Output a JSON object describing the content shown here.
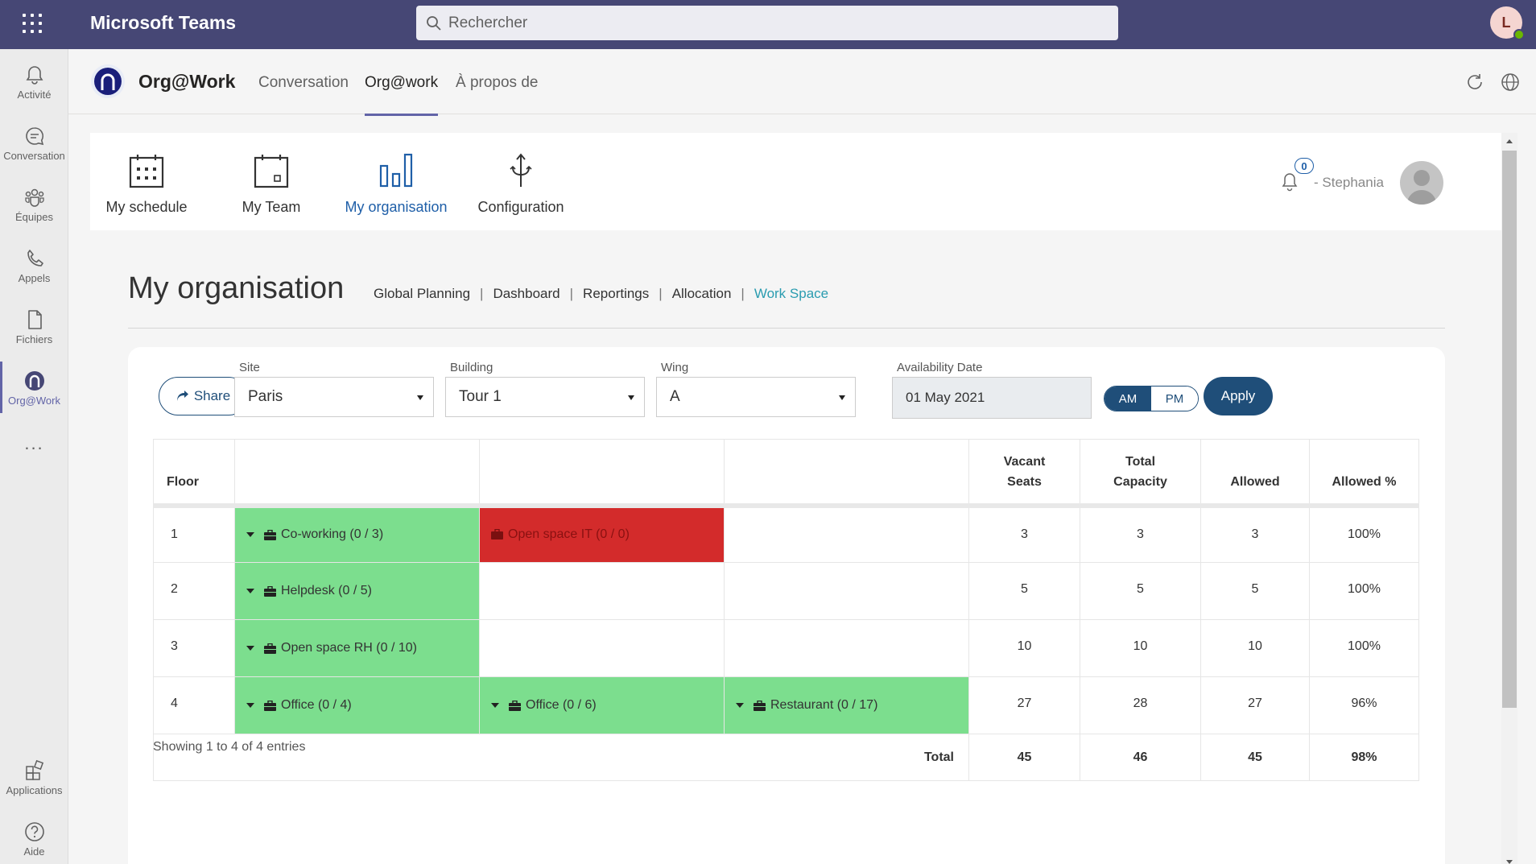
{
  "teams": {
    "app_title": "Microsoft Teams",
    "search_placeholder": "Rechercher",
    "user_initial": "L"
  },
  "rail": {
    "items": [
      {
        "label": "Activité",
        "icon": "bell-icon"
      },
      {
        "label": "Conversation",
        "icon": "chat-icon"
      },
      {
        "label": "Équipes",
        "icon": "teams-icon"
      },
      {
        "label": "Appels",
        "icon": "phone-icon"
      },
      {
        "label": "Fichiers",
        "icon": "file-icon"
      },
      {
        "label": "Org@Work",
        "icon": "orgatwork-icon",
        "active": true
      }
    ],
    "more": "...",
    "bottom": [
      {
        "label": "Applications",
        "icon": "apps-icon"
      },
      {
        "label": "Aide",
        "icon": "help-icon"
      }
    ]
  },
  "app_header": {
    "name": "Org@Work",
    "tabs": [
      {
        "label": "Conversation",
        "active": false
      },
      {
        "label": "Org@work",
        "active": true
      },
      {
        "label": "À propos de",
        "active": false
      }
    ]
  },
  "navbar": {
    "items": [
      {
        "label": "My schedule",
        "icon": "calendar-grid-icon",
        "active": false
      },
      {
        "label": "My Team",
        "icon": "calendar-day-icon",
        "active": false
      },
      {
        "label": "My organisation",
        "icon": "bar-chart-icon",
        "active": true
      },
      {
        "label": "Configuration",
        "icon": "configuration-icon",
        "active": false
      }
    ],
    "notification_count": "0",
    "user_name": "- Stephania"
  },
  "page": {
    "title": "My organisation",
    "subnav": [
      {
        "label": "Global Planning",
        "active": false
      },
      {
        "label": "Dashboard",
        "active": false
      },
      {
        "label": "Reportings",
        "active": false
      },
      {
        "label": "Allocation",
        "active": false
      },
      {
        "label": "Work Space",
        "active": true
      }
    ],
    "subnav_separator": "|"
  },
  "filters": {
    "share_label": "Share",
    "site": {
      "label": "Site",
      "value": "Paris"
    },
    "building": {
      "label": "Building",
      "value": "Tour 1"
    },
    "wing": {
      "label": "Wing",
      "value": "A"
    },
    "availability_date": {
      "label": "Availability Date",
      "value": "01 May 2021"
    },
    "am_label": "AM",
    "pm_label": "PM",
    "selected_period": "AM",
    "apply_label": "Apply"
  },
  "table": {
    "headers": {
      "floor": "Floor",
      "vacant_line1": "Vacant",
      "vacant_line2": "Seats",
      "capacity_line1": "Total",
      "capacity_line2": "Capacity",
      "allowed": "Allowed",
      "allowed_pct": "Allowed %"
    },
    "rows": [
      {
        "floor": "1",
        "zones": [
          {
            "label": "Co-working (0 / 3)",
            "status": "green"
          },
          {
            "label": "Open space IT (0 / 0)",
            "status": "red"
          },
          null
        ],
        "vacant": "3",
        "capacity": "3",
        "allowed": "3",
        "allowed_pct": "100%"
      },
      {
        "floor": "2",
        "zones": [
          {
            "label": "Helpdesk (0 / 5)",
            "status": "green"
          },
          null,
          null
        ],
        "vacant": "5",
        "capacity": "5",
        "allowed": "5",
        "allowed_pct": "100%"
      },
      {
        "floor": "3",
        "zones": [
          {
            "label": "Open space RH (0 / 10)",
            "status": "green"
          },
          null,
          null
        ],
        "vacant": "10",
        "capacity": "10",
        "allowed": "10",
        "allowed_pct": "100%"
      },
      {
        "floor": "4",
        "zones": [
          {
            "label": "Office (0 / 4)",
            "status": "green"
          },
          {
            "label": "Office (0 / 6)",
            "status": "green"
          },
          {
            "label": "Restaurant (0 / 17)",
            "status": "green"
          }
        ],
        "vacant": "27",
        "capacity": "28",
        "allowed": "27",
        "allowed_pct": "96%"
      }
    ],
    "total": {
      "label": "Total",
      "vacant": "45",
      "capacity": "46",
      "allowed": "45",
      "allowed_pct": "98%"
    },
    "showing": "Showing 1 to 4 of 4 entries"
  },
  "colors": {
    "teams_purple": "#464775",
    "accent": "#6264a7",
    "zone_green": "#7cde8e",
    "zone_red": "#d32b2b",
    "primary_blue": "#1f4e79",
    "link_teal": "#2a9cb0"
  }
}
